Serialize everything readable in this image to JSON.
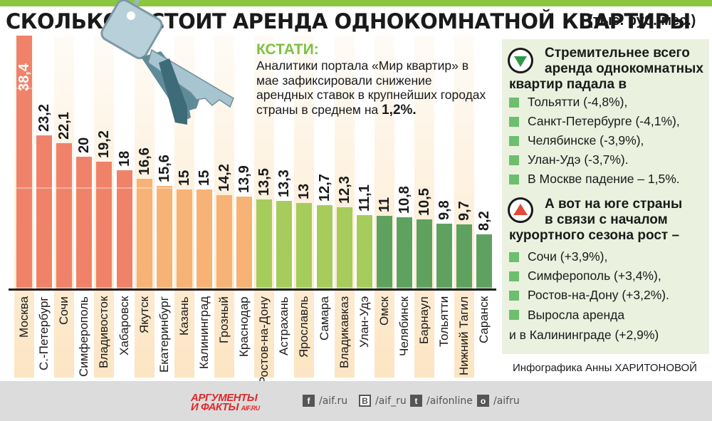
{
  "header": {
    "title_part1": "СКОЛЬКО",
    "title_part2": "СТОИТ АРЕНДА ОДНОКОМНАТНОЙ КВАРТИРЫ",
    "unit": "(тыс. руб./мес.)",
    "accent_color": "#8cc63f"
  },
  "chart_data": {
    "type": "bar",
    "title": "Сколько стоит аренда однокомнатной квартиры",
    "xlabel": "",
    "ylabel": "тыс. руб./мес.",
    "ylim": [
      0,
      40
    ],
    "categories": [
      "Москва",
      "С.-Петербург",
      "Сочи",
      "Симферополь",
      "Владивосток",
      "Хабаровск",
      "Якутск",
      "Екатеринбург",
      "Казань",
      "Калининград",
      "Грозный",
      "Краснодар",
      "Ростов-на-Дону",
      "Астрахань",
      "Ярославль",
      "Самара",
      "Владикавказ",
      "Улан-Удэ",
      "Омск",
      "Челябинск",
      "Барнаул",
      "Тольятти",
      "Нижний Тагил",
      "Саранск"
    ],
    "values": [
      38.4,
      23.2,
      22.1,
      20,
      19.2,
      18,
      16.6,
      15.6,
      15,
      15,
      14.2,
      13.9,
      13.5,
      13.3,
      13,
      12.7,
      12.3,
      11.1,
      11,
      10.8,
      10.5,
      9.8,
      9.7,
      8.2
    ],
    "value_labels": [
      "38,4",
      "23,2",
      "22,1",
      "20",
      "19,2",
      "18",
      "16,6",
      "15,6",
      "15",
      "15",
      "14,2",
      "13,9",
      "13,5",
      "13,3",
      "13",
      "12,7",
      "12,3",
      "11,1",
      "11",
      "10,8",
      "10,5",
      "9,8",
      "9,7",
      "8,2"
    ],
    "bar_colors": [
      "#f0826a",
      "#f0826a",
      "#f0826a",
      "#f0826a",
      "#f0826a",
      "#f0826a",
      "#f7b276",
      "#f7b276",
      "#f7b276",
      "#f7b276",
      "#f7b276",
      "#f7b276",
      "#a6cc5c",
      "#a6cc5c",
      "#a6cc5c",
      "#a6cc5c",
      "#a6cc5c",
      "#a6cc5c",
      "#5fa25f",
      "#5fa25f",
      "#5fa25f",
      "#5fa25f",
      "#5fa25f",
      "#5fa25f"
    ],
    "grid": true,
    "legend": null
  },
  "note": {
    "heading": "КСТАТИ:",
    "text": "Аналитики портала «Мир квартир» в мае зафиксировали снижение арендных ставок в крупнейших городах страны в среднем на ",
    "highlight": "1,2%."
  },
  "panel": {
    "decline": {
      "icon": "down-triangle-icon",
      "heading_line1": "Стремительнее всего",
      "heading_line2": "аренда однокомнатных",
      "heading_line3": "квартир падала в",
      "items": [
        "Тольятти (-4,8%),",
        "Санкт-Петербурге (-4,1%),",
        "Челябинске (-3,9%),",
        "Улан-Удэ (-3,7%).",
        "В Москве падение – 1,5%."
      ]
    },
    "growth": {
      "icon": "up-triangle-icon",
      "heading_line1": "А вот на юге страны",
      "heading_line2": "в связи с началом",
      "heading_line3": "курортного сезона рост –",
      "items": [
        "Сочи (+3,9%),",
        "Симферополь (+3,4%),",
        "Ростов-на-Дону (+3,2%)."
      ],
      "last_item_line1": "Выросла аренда",
      "last_item_line2": "и в Калининграде (+2,9%)"
    }
  },
  "credit": "Инфографика  Анны ХАРИТОНОВОЙ",
  "footer": {
    "logo_line1": "АРГУМЕНТЫ",
    "logo_line2": "И ФАКТЫ",
    "logo_site": "AIF.RU",
    "social": [
      {
        "icon": "facebook-icon",
        "glyph": "f",
        "handle": "/aif.ru"
      },
      {
        "icon": "vk-icon",
        "glyph": "B",
        "handle": "/aif_ru"
      },
      {
        "icon": "twitter-icon",
        "glyph": "t",
        "handle": "/aifonline"
      },
      {
        "icon": "odnoklassniki-icon",
        "glyph": "o",
        "handle": "/aifru"
      }
    ]
  }
}
